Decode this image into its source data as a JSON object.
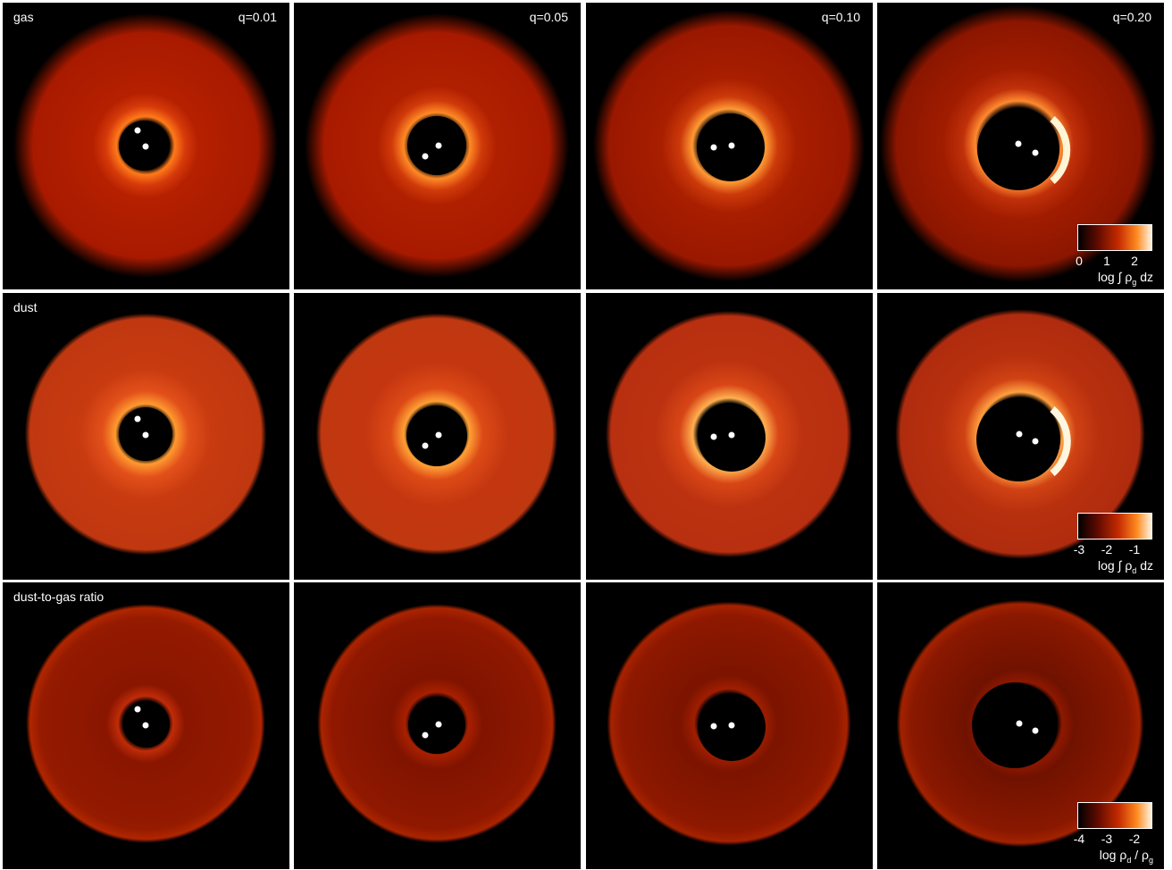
{
  "rows": [
    {
      "label": "gas",
      "colorbar": {
        "ticks": [
          "0",
          "1",
          "2"
        ],
        "label": "log ∫ ρ",
        "sub": "g",
        "suffix": " dz"
      }
    },
    {
      "label": "dust",
      "colorbar": {
        "ticks": [
          "-3",
          "-2",
          "-1"
        ],
        "label": "log ∫ ρ",
        "sub": "d",
        "suffix": " dz"
      }
    },
    {
      "label": "dust-to-gas ratio",
      "colorbar": {
        "ticks": [
          "-4",
          "-3",
          "-2"
        ],
        "label": "log  ρ",
        "sub": "d",
        "suffix": " / ρ",
        "sub2": "g"
      }
    }
  ],
  "columns": [
    {
      "q": "q=0.01"
    },
    {
      "q": "q=0.05"
    },
    {
      "q": "q=0.10"
    },
    {
      "q": "q=0.20"
    }
  ],
  "colors": {
    "background": "#000000",
    "disk_dark": "#5a0a00",
    "disk_mid": "#b82400",
    "disk_bright": "#ff8a20",
    "disk_peak": "#fff0d0",
    "star": "#ffffff"
  }
}
